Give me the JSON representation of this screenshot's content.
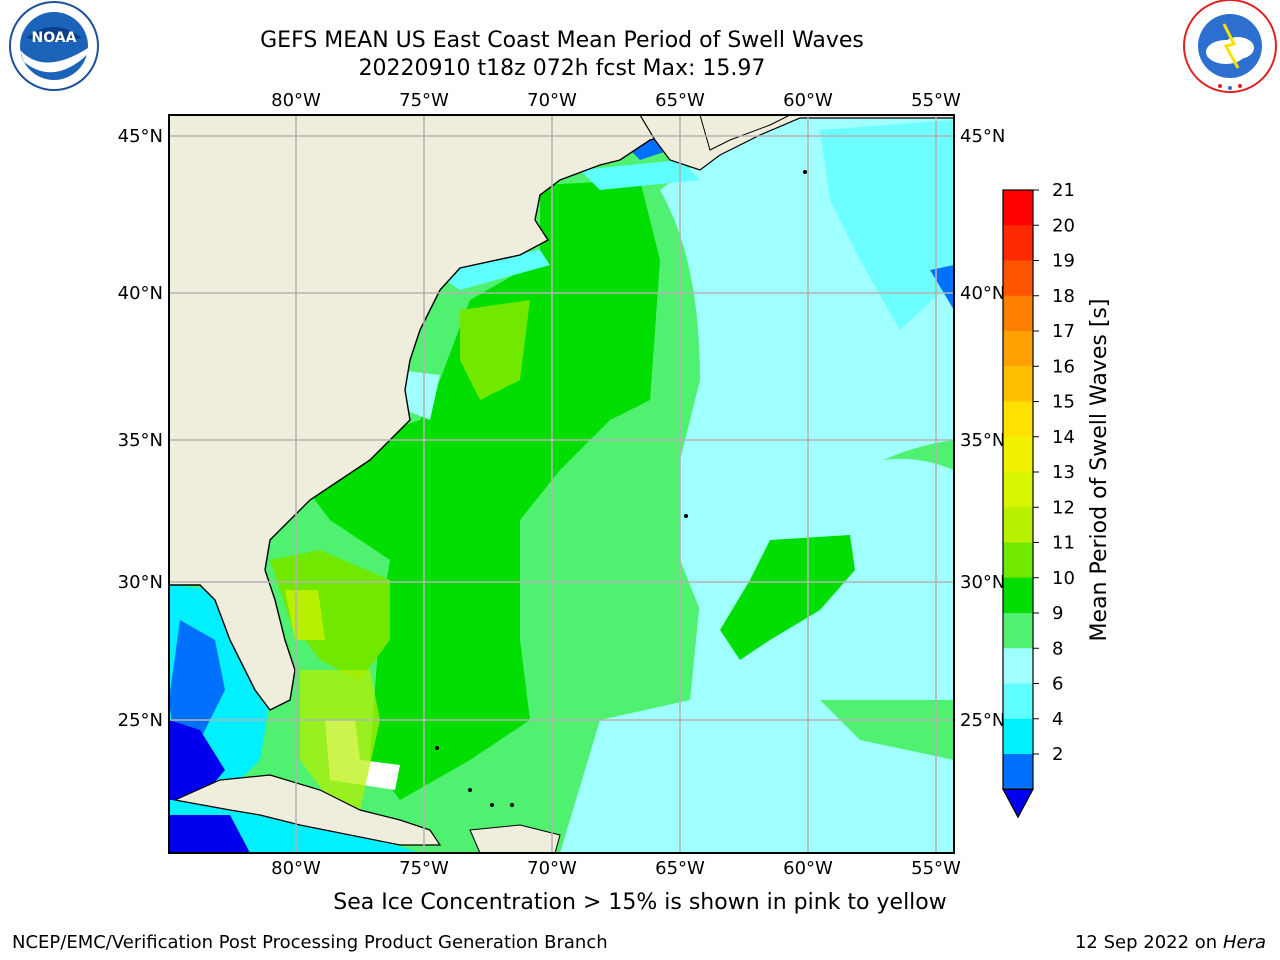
{
  "header": {
    "title_line1": "GEFS MEAN US East Coast Mean Period of Swell Waves",
    "title_line2": "20220910 t18z 072h fcst   Max: 15.97"
  },
  "logos": {
    "left": "noaa-logo",
    "right": "national-weather-service-logo",
    "left_text": "NATIONAL OCEANIC AND ATMOSPHERIC ADMINISTRATION · U.S. DEPARTMENT OF COMMERCE",
    "right_text": "NATIONAL WEATHER SERVICE"
  },
  "map": {
    "lon_labels": [
      "80°W",
      "75°W",
      "70°W",
      "65°W",
      "60°W",
      "55°W"
    ],
    "lat_labels": [
      "45°N",
      "40°N",
      "35°N",
      "30°N",
      "25°N"
    ],
    "grid": true,
    "colors": {
      "land": "#efeedc",
      "coastline": "#000000",
      "gridline": "#b4b4b4"
    }
  },
  "colorbar": {
    "label": "Mean Period of Swell Waves [s]",
    "ticks": [
      "21",
      "20",
      "19",
      "18",
      "17",
      "16",
      "15",
      "14",
      "13",
      "12",
      "11",
      "10",
      "9",
      "8",
      "6",
      "4",
      "2"
    ],
    "colors": [
      "#ff0000",
      "#ff2a00",
      "#ff5500",
      "#ff7f00",
      "#ff9f00",
      "#ffbf00",
      "#ffe000",
      "#f2f200",
      "#d8f500",
      "#b8f000",
      "#70e800",
      "#00dd00",
      "#50f070",
      "#a0ffff",
      "#60ffff",
      "#00f0ff",
      "#0070ff"
    ],
    "under_color": "#0000ee"
  },
  "footer": {
    "note": "Sea Ice Concentration > 15% is shown in pink to yellow",
    "left": "NCEP/EMC/Verification Post Processing Product Generation Branch",
    "right_date": "12 Sep 2022 on",
    "right_host": "Hera"
  }
}
